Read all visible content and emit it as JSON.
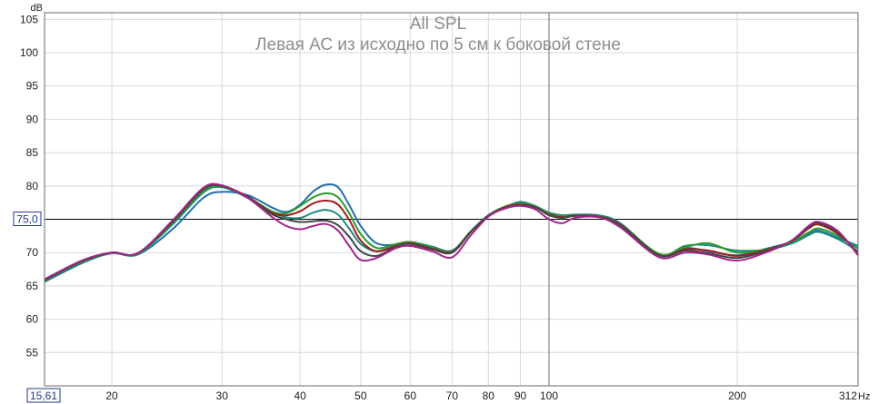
{
  "chart_data": {
    "type": "line",
    "title": "All SPL",
    "subtitle": "Левая АС из исходно по 5 см к боковой стене",
    "ylabel": "dB",
    "xlabel": "Hz",
    "x_scale": "log",
    "xlim": [
      15.61,
      312
    ],
    "ylim": [
      50,
      106
    ],
    "grid": true,
    "y_ticks": [
      "55",
      "60",
      "65",
      "70",
      "75,0",
      "80",
      "85",
      "90",
      "95",
      "100",
      "105"
    ],
    "y_tick_values": [
      55,
      60,
      65,
      70,
      75,
      80,
      85,
      90,
      95,
      100,
      105
    ],
    "x_ticks": [
      "15,61",
      "20",
      "30",
      "40",
      "50",
      "60",
      "70",
      "80",
      "90",
      "100",
      "200",
      "312"
    ],
    "x_tick_values": [
      15.61,
      20,
      30,
      40,
      50,
      60,
      70,
      80,
      90,
      100,
      200,
      312
    ],
    "reference_line": {
      "y": 75,
      "label": "75,0"
    },
    "cursor_x": 100,
    "start_marker": "15,61",
    "series": [
      {
        "color": "#1f6fb0",
        "x": [
          15.61,
          18,
          20,
          22,
          25,
          28,
          30,
          33,
          36,
          38,
          40,
          42,
          44,
          46,
          48,
          50,
          53,
          57,
          60,
          65,
          70,
          75,
          80,
          85,
          90,
          95,
          100,
          105,
          110,
          120,
          130,
          150,
          165,
          180,
          200,
          225,
          245,
          260,
          270,
          290,
          312
        ],
        "y": [
          65.6,
          68.5,
          69.9,
          69.7,
          73.5,
          78.2,
          79.1,
          78.6,
          76.8,
          76.1,
          77.2,
          79.2,
          80.2,
          79.8,
          77.0,
          74.0,
          71.4,
          71.2,
          71.6,
          70.9,
          70.3,
          73.2,
          75.6,
          76.8,
          77.6,
          77.0,
          76.0,
          75.6,
          75.7,
          75.6,
          74.4,
          69.7,
          70.7,
          70.2,
          69.6,
          70.7,
          71.6,
          72.8,
          73.3,
          72.2,
          71.0
        ]
      },
      {
        "color": "#1a8a82",
        "x": [
          15.61,
          18,
          20,
          22,
          25,
          28,
          30,
          33,
          36,
          38,
          40,
          42,
          44,
          46,
          48,
          50,
          53,
          57,
          60,
          65,
          70,
          75,
          80,
          85,
          90,
          95,
          100,
          105,
          110,
          120,
          130,
          150,
          165,
          180,
          200,
          225,
          245,
          260,
          270,
          290,
          312
        ],
        "y": [
          65.7,
          68.6,
          69.9,
          69.8,
          74.2,
          79.0,
          79.8,
          78.2,
          76.2,
          75.3,
          75.2,
          76.0,
          76.4,
          75.7,
          73.5,
          71.3,
          70.2,
          71.1,
          71.4,
          70.6,
          70.1,
          73.2,
          75.5,
          76.8,
          77.5,
          77.0,
          75.8,
          75.4,
          75.6,
          75.4,
          74.2,
          69.6,
          71.0,
          71.1,
          70.3,
          70.5,
          71.4,
          72.6,
          73.1,
          72.0,
          70.2
        ]
      },
      {
        "color": "#2a9a2a",
        "x": [
          15.61,
          18,
          20,
          22,
          25,
          28,
          30,
          33,
          36,
          38,
          40,
          42,
          44,
          46,
          48,
          50,
          53,
          57,
          60,
          65,
          70,
          75,
          80,
          85,
          90,
          95,
          100,
          105,
          110,
          120,
          130,
          150,
          165,
          180,
          200,
          225,
          245,
          260,
          270,
          290,
          312
        ],
        "y": [
          65.8,
          68.7,
          70.0,
          69.8,
          74.4,
          79.2,
          79.9,
          78.3,
          76.2,
          75.9,
          77.0,
          78.3,
          78.9,
          78.3,
          75.8,
          72.8,
          70.7,
          71.3,
          71.6,
          70.8,
          70.2,
          73.2,
          75.6,
          76.9,
          77.4,
          76.9,
          75.9,
          75.5,
          75.6,
          75.5,
          74.3,
          69.8,
          70.8,
          71.4,
          70.0,
          70.6,
          71.6,
          73.0,
          73.6,
          72.5,
          70.6
        ]
      },
      {
        "color": "#a01a1a",
        "x": [
          15.61,
          18,
          20,
          22,
          25,
          28,
          30,
          33,
          36,
          38,
          40,
          42,
          44,
          46,
          48,
          50,
          53,
          57,
          60,
          65,
          70,
          75,
          80,
          85,
          90,
          95,
          100,
          105,
          110,
          120,
          130,
          150,
          165,
          180,
          200,
          225,
          245,
          260,
          270,
          290,
          312
        ],
        "y": [
          65.9,
          68.8,
          70.0,
          69.9,
          74.6,
          79.5,
          80.0,
          78.4,
          76.0,
          75.6,
          76.2,
          77.4,
          77.8,
          77.2,
          74.8,
          71.8,
          70.2,
          71.0,
          71.4,
          70.6,
          70.1,
          73.1,
          75.5,
          76.8,
          77.2,
          76.8,
          75.7,
          75.3,
          75.5,
          75.4,
          74.2,
          69.6,
          70.5,
          70.3,
          69.5,
          70.5,
          71.8,
          73.6,
          74.2,
          72.8,
          70.0
        ]
      },
      {
        "color": "#444444",
        "x": [
          15.61,
          18,
          20,
          22,
          25,
          28,
          30,
          33,
          36,
          38,
          40,
          42,
          44,
          46,
          48,
          50,
          53,
          57,
          60,
          65,
          70,
          75,
          80,
          85,
          90,
          95,
          100,
          105,
          110,
          120,
          130,
          150,
          165,
          180,
          200,
          225,
          245,
          260,
          270,
          290,
          312
        ],
        "y": [
          65.9,
          68.8,
          70.0,
          69.9,
          74.6,
          79.5,
          80.0,
          78.3,
          75.8,
          75.0,
          74.6,
          74.7,
          74.8,
          74.1,
          72.3,
          70.2,
          69.5,
          70.9,
          71.3,
          70.5,
          70.0,
          73.1,
          75.5,
          76.7,
          77.1,
          76.8,
          75.6,
          75.2,
          75.5,
          75.4,
          74.1,
          69.6,
          70.3,
          69.9,
          69.2,
          70.4,
          71.8,
          73.8,
          74.4,
          73.0,
          69.9
        ]
      },
      {
        "color": "#a0268a",
        "x": [
          15.61,
          18,
          20,
          22,
          25,
          28,
          30,
          33,
          36,
          38,
          40,
          42,
          44,
          46,
          48,
          50,
          53,
          57,
          60,
          65,
          70,
          75,
          80,
          85,
          90,
          95,
          100,
          105,
          110,
          120,
          130,
          150,
          165,
          180,
          200,
          225,
          245,
          260,
          270,
          290,
          312
        ],
        "y": [
          66.0,
          68.9,
          70.0,
          69.9,
          74.8,
          79.7,
          80.1,
          78.2,
          75.4,
          74.0,
          73.5,
          74.0,
          74.3,
          73.3,
          70.9,
          68.9,
          69.2,
          70.7,
          71.0,
          70.2,
          69.3,
          72.6,
          75.4,
          76.6,
          77.0,
          76.5,
          75.0,
          74.4,
          75.2,
          75.3,
          73.8,
          69.3,
          70.0,
          69.7,
          68.8,
          70.2,
          71.9,
          74.0,
          74.6,
          73.2,
          69.6
        ]
      }
    ]
  }
}
